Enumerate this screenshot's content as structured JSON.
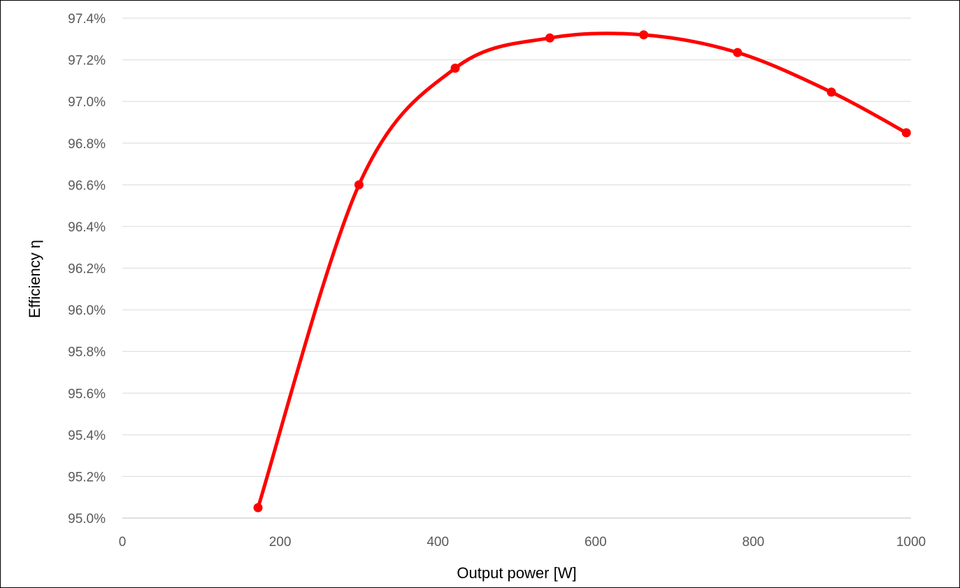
{
  "chart_data": {
    "type": "line",
    "title": "",
    "xlabel": "Output power [W]",
    "ylabel": "Efficiency η",
    "xlim": [
      0,
      1000
    ],
    "ylim": [
      95.0,
      97.4
    ],
    "x_ticks": [
      0,
      200,
      400,
      600,
      800,
      1000
    ],
    "y_ticks": [
      95.0,
      95.2,
      95.4,
      95.6,
      95.8,
      96.0,
      96.2,
      96.4,
      96.6,
      96.8,
      97.0,
      97.2,
      97.4
    ],
    "x_tick_labels": [
      "0",
      "200",
      "400",
      "600",
      "800",
      "1000"
    ],
    "y_tick_labels": [
      "95.0%",
      "95.2%",
      "95.4%",
      "95.6%",
      "95.8%",
      "96.0%",
      "96.2%",
      "96.4%",
      "96.6%",
      "96.8%",
      "97.0%",
      "97.2%",
      "97.4%"
    ],
    "grid": "horizontal",
    "legend": "none",
    "smooth": true,
    "series": [
      {
        "color": "#ff0000",
        "x": [
          172,
          300,
          422,
          542,
          661,
          780,
          899,
          994
        ],
        "y": [
          95.05,
          96.6,
          97.16,
          97.305,
          97.32,
          97.235,
          97.045,
          96.85
        ]
      }
    ]
  }
}
